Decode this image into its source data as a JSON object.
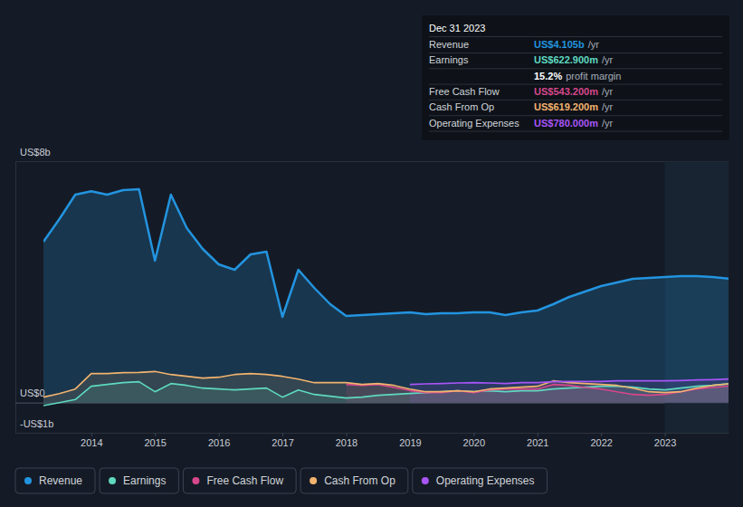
{
  "chart_data": {
    "type": "area",
    "x": [
      2013.25,
      2013.5,
      2013.75,
      2014,
      2014.25,
      2014.5,
      2014.75,
      2015,
      2015.25,
      2015.5,
      2015.75,
      2016,
      2016.25,
      2016.5,
      2016.75,
      2017,
      2017.25,
      2017.5,
      2017.75,
      2018,
      2018.25,
      2018.5,
      2018.75,
      2019,
      2019.25,
      2019.5,
      2019.75,
      2020,
      2020.25,
      2020.5,
      2020.75,
      2021,
      2021.25,
      2021.5,
      2021.75,
      2022,
      2022.25,
      2022.5,
      2022.75,
      2023,
      2023.25,
      2023.5,
      2023.75,
      2024
    ],
    "xlim": [
      2013.25,
      2024
    ],
    "xticks": [
      2014,
      2015,
      2016,
      2017,
      2018,
      2019,
      2020,
      2021,
      2022,
      2023
    ],
    "ylim": [
      -1,
      8
    ],
    "yticks": [
      {
        "value": 8,
        "label": "US$8b"
      },
      {
        "value": 0,
        "label": "US$0"
      },
      {
        "value": -1,
        "label": "-US$1b"
      }
    ],
    "grid": true,
    "legend": "bottom-left",
    "series": [
      {
        "name": "Revenue",
        "color": "#2394df",
        "values": [
          5.33,
          6.08,
          6.89,
          7.0,
          6.89,
          7.04,
          7.07,
          4.7,
          6.89,
          5.78,
          5.09,
          4.58,
          4.4,
          4.91,
          5.0,
          2.84,
          4.4,
          3.8,
          3.26,
          2.87,
          2.9,
          2.93,
          2.96,
          2.99,
          2.93,
          2.96,
          2.96,
          2.99,
          2.99,
          2.9,
          2.99,
          3.05,
          3.26,
          3.5,
          3.68,
          3.86,
          3.98,
          4.1,
          4.13,
          4.16,
          4.19,
          4.19,
          4.16,
          4.105
        ]
      },
      {
        "name": "Earnings",
        "color": "#5fd9c0",
        "values": [
          -0.1,
          0.0,
          0.1,
          0.54,
          0.6,
          0.66,
          0.69,
          0.36,
          0.63,
          0.57,
          0.48,
          0.45,
          0.42,
          0.45,
          0.48,
          0.18,
          0.42,
          0.27,
          0.21,
          0.15,
          0.18,
          0.24,
          0.27,
          0.3,
          0.33,
          0.36,
          0.39,
          0.36,
          0.39,
          0.36,
          0.39,
          0.39,
          0.45,
          0.48,
          0.51,
          0.54,
          0.54,
          0.51,
          0.45,
          0.42,
          0.48,
          0.54,
          0.57,
          0.6229
        ]
      },
      {
        "name": "Free Cash Flow",
        "color": "#d6478b",
        "values": [
          null,
          null,
          null,
          null,
          null,
          null,
          null,
          null,
          null,
          null,
          null,
          null,
          null,
          null,
          null,
          null,
          null,
          null,
          null,
          0.6,
          0.57,
          0.6,
          0.5,
          0.4,
          0.33,
          0.33,
          0.39,
          0.33,
          0.42,
          0.45,
          0.45,
          0.45,
          0.6,
          0.57,
          0.5,
          0.45,
          0.36,
          0.27,
          0.24,
          0.27,
          0.36,
          0.45,
          0.5,
          0.5432
        ]
      },
      {
        "name": "Cash From Op",
        "color": "#f2b36f",
        "values": [
          0.18,
          0.3,
          0.45,
          0.96,
          0.96,
          0.99,
          1.0,
          1.03,
          0.93,
          0.87,
          0.81,
          0.84,
          0.93,
          0.96,
          0.93,
          0.87,
          0.78,
          0.66,
          0.66,
          0.66,
          0.6,
          0.63,
          0.57,
          0.45,
          0.36,
          0.36,
          0.39,
          0.36,
          0.45,
          0.48,
          0.51,
          0.54,
          0.72,
          0.66,
          0.63,
          0.6,
          0.57,
          0.48,
          0.36,
          0.33,
          0.36,
          0.48,
          0.57,
          0.6192
        ]
      },
      {
        "name": "Operating Expenses",
        "color": "#a855f7",
        "values": [
          null,
          null,
          null,
          null,
          null,
          null,
          null,
          null,
          null,
          null,
          null,
          null,
          null,
          null,
          null,
          null,
          null,
          null,
          null,
          null,
          null,
          null,
          null,
          0.6,
          0.62,
          0.63,
          0.65,
          0.66,
          0.65,
          0.63,
          0.66,
          0.66,
          0.69,
          0.7,
          0.7,
          0.7,
          0.72,
          0.72,
          0.72,
          0.72,
          0.73,
          0.75,
          0.76,
          0.78
        ]
      }
    ],
    "tooltip": {
      "date": "Dec 31 2023",
      "rows": [
        {
          "label": "Revenue",
          "value": "US$4.105b",
          "suffix": "/yr"
        },
        {
          "label": "Earnings",
          "value": "US$622.900m",
          "suffix": "/yr"
        },
        {
          "value": "15.2%",
          "suffix": "profit margin"
        },
        {
          "label": "Free Cash Flow",
          "value": "US$543.200m",
          "suffix": "/yr"
        },
        {
          "label": "Cash From Op",
          "value": "US$619.200m",
          "suffix": "/yr"
        },
        {
          "label": "Operating Expenses",
          "value": "US$780.000m",
          "suffix": "/yr"
        }
      ]
    }
  }
}
